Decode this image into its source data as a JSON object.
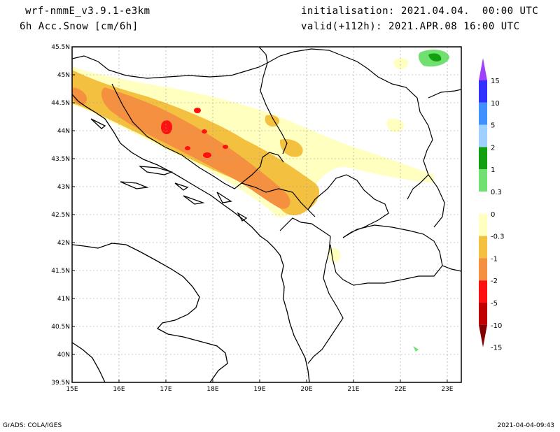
{
  "header": {
    "model": "wrf-nmmE_v3.9.1-e3km",
    "field": "6h Acc.Snow [cm/6h]",
    "initialisation": "initialisation: 2021.04.04.  00:00 UTC",
    "valid": "valid(+112h): 2021.APR.08 16:00 UTC"
  },
  "map": {
    "lon_ticks": [
      "15E",
      "16E",
      "17E",
      "18E",
      "19E",
      "20E",
      "21E",
      "22E",
      "23E"
    ],
    "lat_ticks": [
      "39.5N",
      "40N",
      "40.5N",
      "41N",
      "41.5N",
      "42N",
      "42.5N",
      "43N",
      "43.5N",
      "44N",
      "44.5N",
      "45N",
      "45.5N"
    ],
    "lon_range": [
      15.0,
      23.3
    ],
    "lat_range": [
      39.5,
      45.5
    ]
  },
  "colorbar": {
    "levels": [
      "15",
      "10",
      "5",
      "2",
      "1",
      "0.3",
      "0",
      "-0.3",
      "-1",
      "-2",
      "-5",
      "-10",
      "-15"
    ],
    "colors": {
      "top_arrow": "#a040ff",
      "bins": [
        "#3030ff",
        "#4090ff",
        "#a0d0ff",
        "#10a010",
        "#70e070",
        "#ffffff",
        "#ffffc0",
        "#f4c040",
        "#f49040",
        "#ff1010",
        "#c00000"
      ],
      "bottom_arrow": "#800000"
    }
  },
  "footer": {
    "left": "GrADS: COLA/IGES",
    "right": "2021-04-04-09:43"
  }
}
